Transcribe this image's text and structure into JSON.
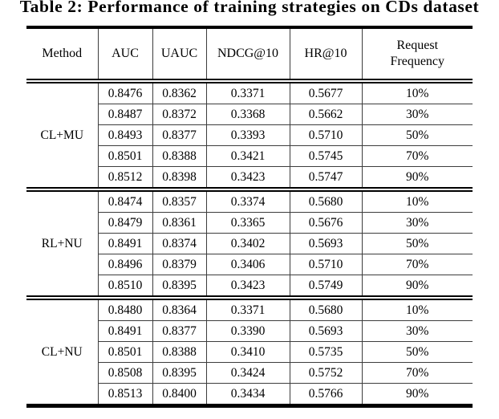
{
  "title": "Table 2: Performance of training strategies on CDs dataset",
  "table": {
    "columns": [
      "Method",
      "AUC",
      "UAUC",
      "NDCG@10",
      "HR@10",
      "Request\nFrequency"
    ],
    "groups": [
      {
        "method": "CL+MU",
        "rows": [
          [
            "0.8476",
            "0.8362",
            "0.3371",
            "0.5677",
            "10%"
          ],
          [
            "0.8487",
            "0.8372",
            "0.3368",
            "0.5662",
            "30%"
          ],
          [
            "0.8493",
            "0.8377",
            "0.3393",
            "0.5710",
            "50%"
          ],
          [
            "0.8501",
            "0.8388",
            "0.3421",
            "0.5745",
            "70%"
          ],
          [
            "0.8512",
            "0.8398",
            "0.3423",
            "0.5747",
            "90%"
          ]
        ]
      },
      {
        "method": "RL+NU",
        "rows": [
          [
            "0.8474",
            "0.8357",
            "0.3374",
            "0.5680",
            "10%"
          ],
          [
            "0.8479",
            "0.8361",
            "0.3365",
            "0.5676",
            "30%"
          ],
          [
            "0.8491",
            "0.8374",
            "0.3402",
            "0.5693",
            "50%"
          ],
          [
            "0.8496",
            "0.8379",
            "0.3406",
            "0.5710",
            "70%"
          ],
          [
            "0.8510",
            "0.8395",
            "0.3423",
            "0.5749",
            "90%"
          ]
        ]
      },
      {
        "method": "CL+NU",
        "rows": [
          [
            "0.8480",
            "0.8364",
            "0.3371",
            "0.5680",
            "10%"
          ],
          [
            "0.8491",
            "0.8377",
            "0.3390",
            "0.5693",
            "30%"
          ],
          [
            "0.8501",
            "0.8388",
            "0.3410",
            "0.5735",
            "50%"
          ],
          [
            "0.8508",
            "0.8395",
            "0.3424",
            "0.5752",
            "70%"
          ],
          [
            "0.8513",
            "0.8400",
            "0.3434",
            "0.5766",
            "90%"
          ]
        ]
      }
    ]
  },
  "colors": {
    "background": "#ffffff",
    "text": "#000000",
    "rule_heavy": "#000000",
    "rule_light": "#3d3d3d"
  }
}
